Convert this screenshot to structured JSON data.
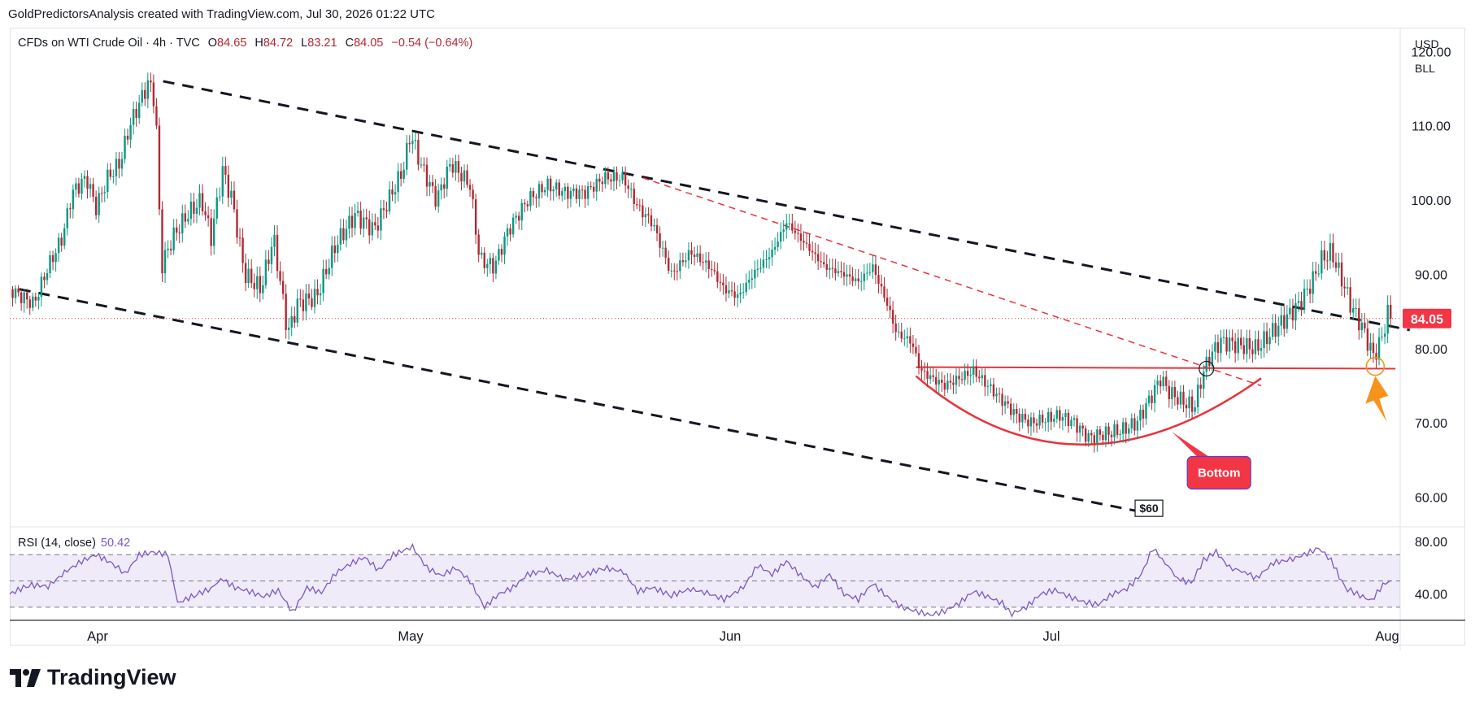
{
  "header": {
    "attribution": "GoldPredictorsAnalysis created with TradingView.com, Jul 30, 2026 01:22 UTC"
  },
  "legend": {
    "symbol": "CFDs on WTI Crude Oil · 4h · TVC",
    "open_label": "O",
    "open": "84.65",
    "high_label": "H",
    "high": "84.72",
    "low_label": "L",
    "low": "83.21",
    "close_label": "C",
    "close": "84.05",
    "change": "−0.54 (−0.64%)"
  },
  "units": {
    "currency": "USD",
    "unit": "BLL"
  },
  "last_price_label": "84.05",
  "rsi_legend": {
    "label": "RSI (14, close)",
    "value": "50.42"
  },
  "annotations": {
    "bottom_label": "Bottom",
    "target_label": "$60"
  },
  "logo": {
    "text": "TradingView"
  },
  "colors": {
    "up": "#089981",
    "down": "#b22833",
    "rsi": "#7e57c2",
    "trend": "#131722",
    "red_line": "#e8333c",
    "arrow": "#f7931a"
  },
  "chart_data": [
    {
      "type": "candlestick",
      "title": "CFDs on WTI Crude Oil · 4h · TVC",
      "x_ticks": [
        "Apr",
        "May",
        "Jun",
        "Jul",
        "Aug"
      ],
      "y_ticks": [
        60,
        70,
        80,
        90,
        100,
        110,
        120
      ],
      "y_tick_labels": [
        "60.00",
        "70.00",
        "80.00",
        "90.00",
        "100.00",
        "110.00",
        "120.00"
      ],
      "ylim": [
        56,
        123
      ],
      "last_price": 84.05,
      "close_path": [
        [
          0,
          88
        ],
        [
          25,
          86
        ],
        [
          40,
          91
        ],
        [
          55,
          95
        ],
        [
          65,
          101
        ],
        [
          80,
          103
        ],
        [
          90,
          99
        ],
        [
          102,
          103
        ],
        [
          115,
          105
        ],
        [
          125,
          110
        ],
        [
          135,
          113
        ],
        [
          145,
          116
        ],
        [
          152,
          113
        ],
        [
          158,
          91
        ],
        [
          170,
          95
        ],
        [
          185,
          98
        ],
        [
          200,
          100
        ],
        [
          210,
          95
        ],
        [
          222,
          104
        ],
        [
          232,
          100
        ],
        [
          245,
          90
        ],
        [
          262,
          88
        ],
        [
          275,
          95
        ],
        [
          282,
          89
        ],
        [
          290,
          82
        ],
        [
          300,
          86
        ],
        [
          320,
          87
        ],
        [
          340,
          94
        ],
        [
          360,
          98
        ],
        [
          380,
          96
        ],
        [
          395,
          100
        ],
        [
          410,
          104
        ],
        [
          418,
          109
        ],
        [
          428,
          105
        ],
        [
          445,
          100
        ],
        [
          460,
          105
        ],
        [
          480,
          102
        ],
        [
          490,
          92
        ],
        [
          505,
          91
        ],
        [
          520,
          96
        ],
        [
          540,
          100
        ],
        [
          560,
          102
        ],
        [
          580,
          101
        ],
        [
          600,
          101
        ],
        [
          620,
          103
        ],
        [
          640,
          103
        ],
        [
          655,
          99
        ],
        [
          670,
          97
        ],
        [
          690,
          90
        ],
        [
          710,
          93
        ],
        [
          730,
          91
        ],
        [
          745,
          88
        ],
        [
          760,
          87
        ],
        [
          775,
          90
        ],
        [
          795,
          93
        ],
        [
          810,
          97
        ],
        [
          830,
          94
        ],
        [
          850,
          91
        ],
        [
          870,
          90
        ],
        [
          885,
          89
        ],
        [
          900,
          91
        ],
        [
          915,
          86
        ],
        [
          925,
          82
        ],
        [
          940,
          81
        ],
        [
          950,
          77
        ],
        [
          962,
          76
        ],
        [
          975,
          75
        ],
        [
          990,
          76
        ],
        [
          1005,
          77
        ],
        [
          1020,
          75
        ],
        [
          1035,
          73
        ],
        [
          1050,
          71
        ],
        [
          1065,
          70
        ],
        [
          1080,
          70.5
        ],
        [
          1095,
          71
        ],
        [
          1110,
          70
        ],
        [
          1125,
          68
        ],
        [
          1140,
          68.5
        ],
        [
          1160,
          69
        ],
        [
          1175,
          70
        ],
        [
          1188,
          73
        ],
        [
          1200,
          76
        ],
        [
          1210,
          74
        ],
        [
          1222,
          73
        ],
        [
          1235,
          72
        ],
        [
          1245,
          77
        ],
        [
          1252,
          79
        ],
        [
          1262,
          81
        ],
        [
          1280,
          80.5
        ],
        [
          1300,
          80
        ],
        [
          1315,
          82
        ],
        [
          1330,
          84
        ],
        [
          1345,
          86
        ],
        [
          1358,
          89
        ],
        [
          1368,
          92
        ],
        [
          1378,
          93
        ],
        [
          1390,
          89
        ],
        [
          1398,
          86
        ],
        [
          1410,
          83
        ],
        [
          1422,
          79
        ],
        [
          1430,
          81
        ],
        [
          1437,
          84.7
        ],
        [
          1442,
          84.05
        ]
      ],
      "trendlines": [
        {
          "name": "upper-channel",
          "from": [
            160,
            116
          ],
          "to": [
            1460,
            82.5
          ]
        },
        {
          "name": "lower-channel",
          "from": [
            10,
            88
          ],
          "to": [
            1200,
            57.5
          ]
        },
        {
          "name": "red-dashed",
          "from": [
            660,
            103
          ],
          "to": [
            1305,
            75
          ]
        },
        {
          "name": "neckline",
          "from": [
            945,
            77.5
          ],
          "to": [
            1445,
            77.3
          ]
        }
      ]
    },
    {
      "type": "line",
      "title": "RSI (14, close)",
      "y_ticks": [
        40,
        80
      ],
      "y_tick_labels": [
        "40.00",
        "80.00"
      ],
      "bands": [
        70,
        50,
        30
      ],
      "ylim": [
        20,
        90
      ],
      "path": [
        [
          0,
          40
        ],
        [
          20,
          47
        ],
        [
          40,
          46
        ],
        [
          60,
          58
        ],
        [
          75,
          65
        ],
        [
          90,
          70
        ],
        [
          110,
          62
        ],
        [
          120,
          55
        ],
        [
          135,
          70
        ],
        [
          150,
          72
        ],
        [
          165,
          70
        ],
        [
          175,
          33
        ],
        [
          195,
          40
        ],
        [
          210,
          44
        ],
        [
          220,
          52
        ],
        [
          235,
          45
        ],
        [
          250,
          42
        ],
        [
          265,
          38
        ],
        [
          280,
          43
        ],
        [
          295,
          26
        ],
        [
          310,
          45
        ],
        [
          325,
          41
        ],
        [
          340,
          56
        ],
        [
          355,
          63
        ],
        [
          370,
          68
        ],
        [
          385,
          58
        ],
        [
          400,
          70
        ],
        [
          420,
          76
        ],
        [
          435,
          60
        ],
        [
          450,
          54
        ],
        [
          465,
          60
        ],
        [
          480,
          50
        ],
        [
          495,
          30
        ],
        [
          510,
          40
        ],
        [
          525,
          45
        ],
        [
          540,
          55
        ],
        [
          560,
          58
        ],
        [
          580,
          51
        ],
        [
          600,
          55
        ],
        [
          620,
          60
        ],
        [
          640,
          57
        ],
        [
          655,
          42
        ],
        [
          670,
          45
        ],
        [
          690,
          39
        ],
        [
          710,
          44
        ],
        [
          730,
          40
        ],
        [
          745,
          36
        ],
        [
          765,
          45
        ],
        [
          780,
          62
        ],
        [
          795,
          55
        ],
        [
          810,
          65
        ],
        [
          825,
          54
        ],
        [
          840,
          45
        ],
        [
          855,
          55
        ],
        [
          870,
          40
        ],
        [
          885,
          36
        ],
        [
          900,
          48
        ],
        [
          915,
          38
        ],
        [
          930,
          30
        ],
        [
          945,
          27
        ],
        [
          960,
          24
        ],
        [
          975,
          27
        ],
        [
          990,
          33
        ],
        [
          1005,
          42
        ],
        [
          1020,
          38
        ],
        [
          1035,
          33
        ],
        [
          1045,
          25
        ],
        [
          1060,
          30
        ],
        [
          1075,
          40
        ],
        [
          1090,
          43
        ],
        [
          1105,
          38
        ],
        [
          1120,
          34
        ],
        [
          1135,
          32
        ],
        [
          1150,
          40
        ],
        [
          1165,
          44
        ],
        [
          1180,
          55
        ],
        [
          1192,
          75
        ],
        [
          1205,
          64
        ],
        [
          1218,
          52
        ],
        [
          1232,
          48
        ],
        [
          1245,
          66
        ],
        [
          1258,
          72
        ],
        [
          1272,
          60
        ],
        [
          1288,
          57
        ],
        [
          1300,
          52
        ],
        [
          1318,
          64
        ],
        [
          1335,
          66
        ],
        [
          1350,
          70
        ],
        [
          1365,
          75
        ],
        [
          1378,
          66
        ],
        [
          1392,
          45
        ],
        [
          1405,
          40
        ],
        [
          1420,
          35
        ],
        [
          1432,
          47
        ],
        [
          1440,
          50.42
        ]
      ]
    }
  ]
}
